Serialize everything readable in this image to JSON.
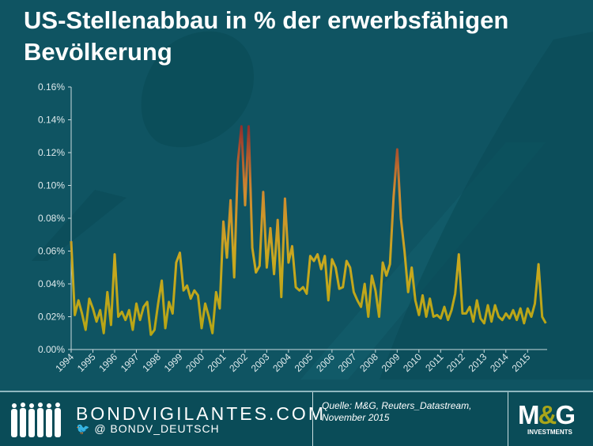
{
  "title": "US-Stellenabbau in % der erwerbsfähigen Bevölkerung",
  "footer": {
    "brand": "BONDVIGILANTES.COM",
    "handle": "@ BONDV_DEUTSCH",
    "source_line1": "Quelle: M&G, Reuters_Datastream,",
    "source_line2": "November 2015",
    "logo_text": "M&G",
    "logo_sub": "INVESTMENTS"
  },
  "colors": {
    "low": "#b3a513",
    "mid": "#d08a30",
    "high": "#8e2a2c",
    "background": "#0f5462"
  },
  "chart_data": {
    "type": "line",
    "title": "US-Stellenabbau in % der erwerbsfähigen Bevölkerung",
    "xlabel": "",
    "ylabel": "",
    "ylim": [
      0,
      0.16
    ],
    "xlim": [
      1994,
      2015.9
    ],
    "yticks": [
      "0.00%",
      "0.02%",
      "0.04%",
      "0.06%",
      "0.08%",
      "0.10%",
      "0.12%",
      "0.14%",
      "0.16%"
    ],
    "xticks": [
      "1994",
      "1995",
      "1996",
      "1997",
      "1998",
      "1999",
      "2000",
      "2001",
      "2002",
      "2003",
      "2004",
      "2005",
      "2006",
      "2007",
      "2008",
      "2009",
      "2010",
      "2011",
      "2012",
      "2013",
      "2014",
      "2015"
    ],
    "grid": false,
    "series": [
      {
        "name": "Stellenabbau",
        "step_years": 0.1667,
        "start": 1994,
        "values": [
          0.066,
          0.021,
          0.03,
          0.022,
          0.012,
          0.031,
          0.025,
          0.017,
          0.024,
          0.01,
          0.035,
          0.015,
          0.058,
          0.02,
          0.023,
          0.018,
          0.024,
          0.012,
          0.028,
          0.018,
          0.026,
          0.029,
          0.009,
          0.012,
          0.028,
          0.042,
          0.013,
          0.029,
          0.022,
          0.053,
          0.059,
          0.036,
          0.039,
          0.031,
          0.036,
          0.033,
          0.013,
          0.028,
          0.02,
          0.01,
          0.035,
          0.025,
          0.078,
          0.056,
          0.091,
          0.044,
          0.114,
          0.136,
          0.088,
          0.136,
          0.062,
          0.047,
          0.051,
          0.096,
          0.05,
          0.074,
          0.046,
          0.079,
          0.032,
          0.092,
          0.053,
          0.063,
          0.038,
          0.036,
          0.038,
          0.034,
          0.057,
          0.054,
          0.058,
          0.049,
          0.057,
          0.03,
          0.055,
          0.05,
          0.037,
          0.038,
          0.054,
          0.05,
          0.035,
          0.03,
          0.026,
          0.04,
          0.02,
          0.045,
          0.036,
          0.02,
          0.053,
          0.045,
          0.052,
          0.093,
          0.122,
          0.08,
          0.06,
          0.035,
          0.05,
          0.03,
          0.021,
          0.033,
          0.02,
          0.031,
          0.02,
          0.021,
          0.019,
          0.026,
          0.018,
          0.024,
          0.034,
          0.058,
          0.022,
          0.022,
          0.026,
          0.017,
          0.03,
          0.019,
          0.016,
          0.027,
          0.017,
          0.027,
          0.02,
          0.018,
          0.022,
          0.019,
          0.024,
          0.018,
          0.025,
          0.016,
          0.025,
          0.02,
          0.028,
          0.052,
          0.02,
          0.016
        ]
      }
    ]
  }
}
